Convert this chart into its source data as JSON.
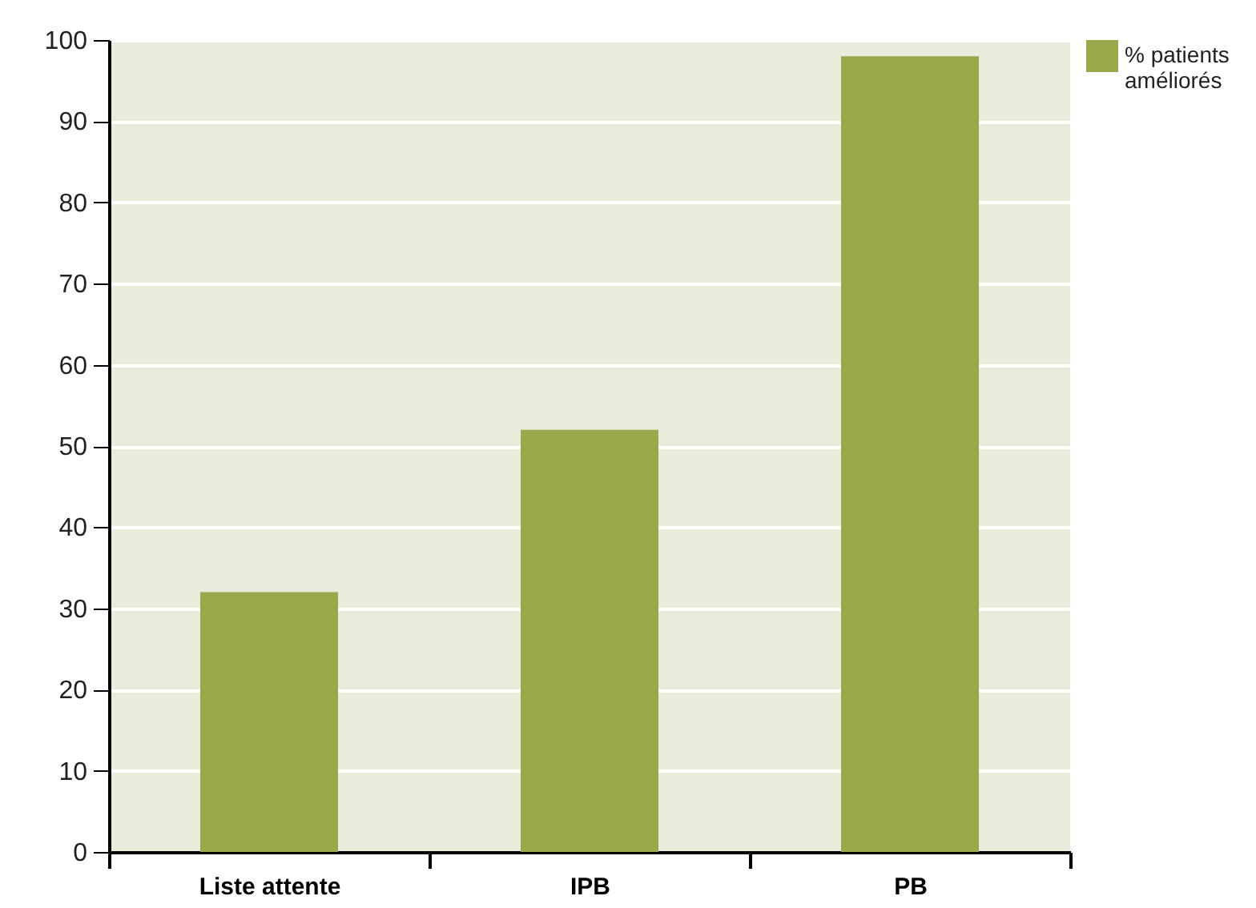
{
  "chart_data": {
    "type": "bar",
    "categories": [
      "Liste attente",
      "IPB",
      "PB"
    ],
    "series": [
      {
        "name": "% patients\naméliorés",
        "color": "#99a84a",
        "values": [
          32,
          52,
          98
        ]
      }
    ],
    "ylim": [
      0,
      100
    ],
    "yticks": [
      0,
      10,
      20,
      30,
      40,
      50,
      60,
      70,
      80,
      90,
      100
    ],
    "grid": "y",
    "legend": "top right"
  }
}
